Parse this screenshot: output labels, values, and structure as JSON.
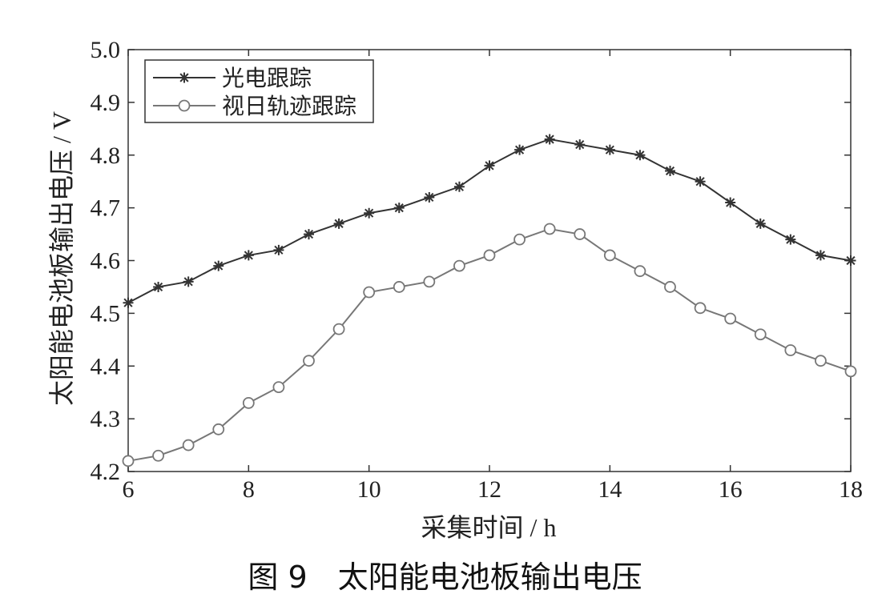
{
  "caption": "图 9　太阳能电池板输出电压",
  "chart_data": {
    "type": "line",
    "xlabel": "采集时间 / h",
    "ylabel": "太阳能电池板输出电压 / V",
    "xlim": [
      6,
      18
    ],
    "ylim": [
      4.2,
      5.0
    ],
    "xticks": [
      6,
      8,
      10,
      12,
      14,
      16,
      18
    ],
    "yticks": [
      4.2,
      4.3,
      4.4,
      4.5,
      4.6,
      4.7,
      4.8,
      4.9,
      5.0
    ],
    "grid": false,
    "legend_position": "top-left",
    "x": [
      6,
      6.5,
      7,
      7.5,
      8,
      8.5,
      9,
      9.5,
      10,
      10.5,
      11,
      11.5,
      12,
      12.5,
      13,
      13.5,
      14,
      14.5,
      15,
      15.5,
      16,
      16.5,
      17,
      17.5,
      18
    ],
    "series": [
      {
        "name": "光电跟踪",
        "marker": "asterisk",
        "color": "#333333",
        "values": [
          4.52,
          4.55,
          4.56,
          4.59,
          4.61,
          4.62,
          4.65,
          4.67,
          4.69,
          4.7,
          4.72,
          4.74,
          4.78,
          4.81,
          4.83,
          4.82,
          4.81,
          4.8,
          4.77,
          4.75,
          4.71,
          4.67,
          4.64,
          4.61,
          4.6
        ]
      },
      {
        "name": "视日轨迹跟踪",
        "marker": "circle",
        "color": "#777777",
        "values": [
          4.22,
          4.23,
          4.25,
          4.28,
          4.33,
          4.36,
          4.41,
          4.47,
          4.54,
          4.55,
          4.56,
          4.59,
          4.61,
          4.64,
          4.66,
          4.65,
          4.61,
          4.58,
          4.55,
          4.51,
          4.49,
          4.46,
          4.43,
          4.41,
          4.39
        ]
      }
    ]
  }
}
